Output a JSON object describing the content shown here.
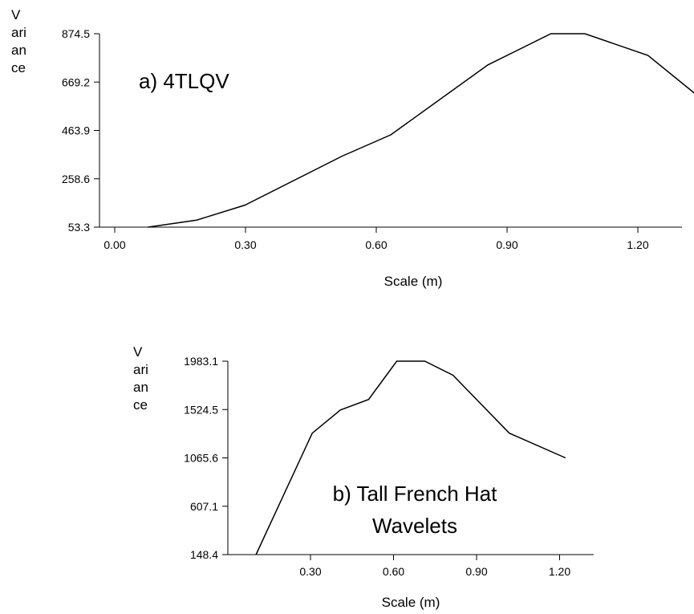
{
  "chart_data": [
    {
      "type": "line",
      "title": "a) 4TLQV",
      "xlabel": "Scale (m)",
      "ylabel_lines": [
        "V",
        "ari",
        "an",
        "ce"
      ],
      "xlim": [
        0.0,
        1.2
      ],
      "ylim": [
        53.3,
        874.5
      ],
      "x_ticks": [
        "0.00",
        "0.30",
        "0.60",
        "0.90",
        "1.20"
      ],
      "y_ticks": [
        "53.3",
        "258.6",
        "463.9",
        "669.2",
        "874.5"
      ],
      "grid": false,
      "series": [
        {
          "x": [
            0.1,
            0.2,
            0.3,
            0.5,
            0.6,
            0.8,
            0.93,
            1.0,
            1.13,
            1.23
          ],
          "y": [
            53.3,
            83,
            147,
            355,
            445,
            742,
            874.5,
            874.5,
            782,
            615
          ]
        }
      ]
    },
    {
      "type": "line",
      "title_lines": [
        "b) Tall French Hat",
        "Wavelets"
      ],
      "xlabel": "Scale (m)",
      "ylabel_lines": [
        "V",
        "ari",
        "an",
        "ce"
      ],
      "xlim": [
        0.0,
        1.3
      ],
      "ylim": [
        148.4,
        1983.1
      ],
      "x_ticks": [
        "0.30",
        "0.60",
        "0.90",
        "1.20"
      ],
      "y_ticks": [
        "148.4",
        "607.1",
        "1065.6",
        "1524.5",
        "1983.1"
      ],
      "grid": false,
      "series": [
        {
          "x": [
            0.1,
            0.3,
            0.4,
            0.5,
            0.6,
            0.7,
            0.8,
            1.0,
            1.2
          ],
          "y": [
            148.4,
            1300,
            1520,
            1620,
            1983.1,
            1983.1,
            1850,
            1300,
            1065.6
          ]
        }
      ]
    }
  ]
}
